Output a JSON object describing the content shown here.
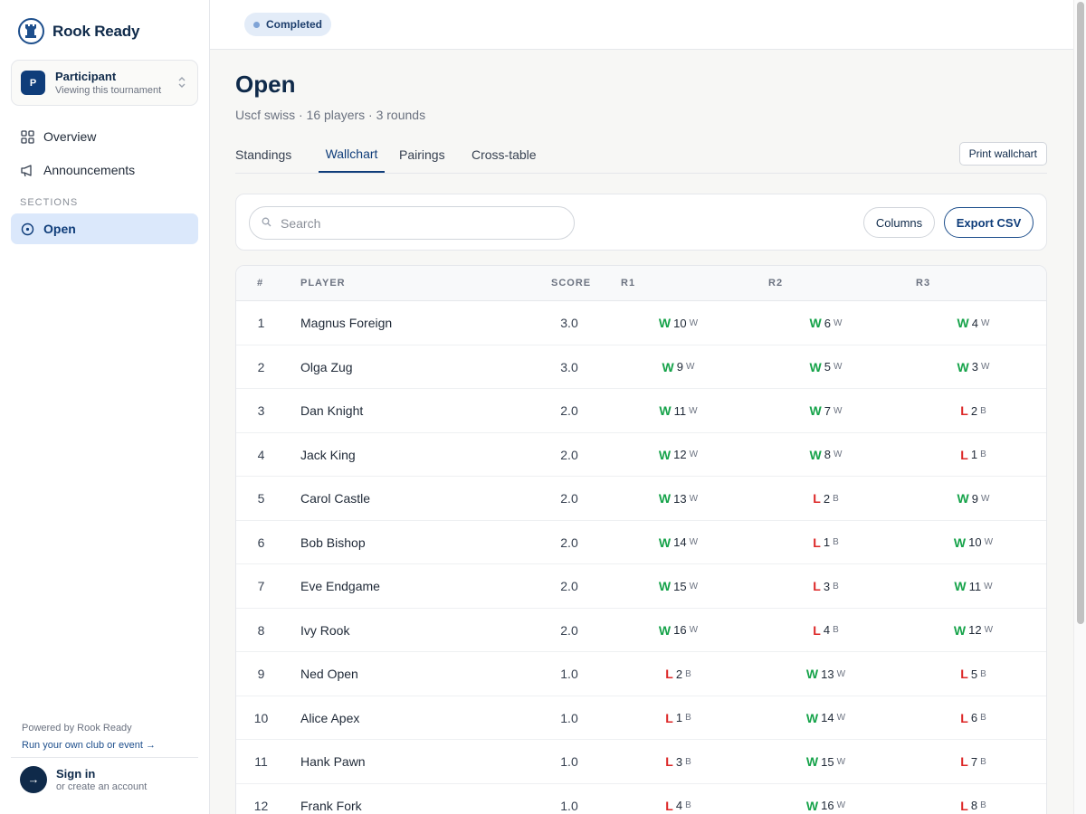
{
  "brand": {
    "name": "Rook Ready",
    "logo_icon": "rook-icon"
  },
  "role": {
    "avatar": "P",
    "title": "Participant",
    "subtitle": "Viewing this tournament"
  },
  "nav": {
    "overview": "Overview",
    "announcements": "Announcements",
    "sections_label": "SECTIONS",
    "open": "Open"
  },
  "footer": {
    "powered": "Powered by Rook Ready",
    "run_link": "Run your own club or event →",
    "signin_title": "Sign in",
    "signin_sub": "or create an account"
  },
  "status": {
    "label": "Completed"
  },
  "page": {
    "title": "Open",
    "subtitle": "Uscf swiss · 16 players · 3 rounds"
  },
  "tabs": {
    "standings": "Standings",
    "wallchart": "Wallchart",
    "pairings": "Pairings",
    "cross": "Cross-table",
    "active": "Wallchart"
  },
  "actions": {
    "print": "Print wallchart",
    "columns": "Columns",
    "export": "Export CSV"
  },
  "search": {
    "placeholder": "Search",
    "value": ""
  },
  "table": {
    "headers": {
      "num": "#",
      "player": "PLAYER",
      "score": "SCORE",
      "r1": "R1",
      "r2": "R2",
      "r3": "R3"
    },
    "rows": [
      {
        "num": "1",
        "player": "Magnus Foreign",
        "score": "3.0",
        "r": [
          [
            "W",
            "10",
            "W"
          ],
          [
            "W",
            "6",
            "W"
          ],
          [
            "W",
            "4",
            "W"
          ]
        ]
      },
      {
        "num": "2",
        "player": "Olga Zug",
        "score": "3.0",
        "r": [
          [
            "W",
            "9",
            "W"
          ],
          [
            "W",
            "5",
            "W"
          ],
          [
            "W",
            "3",
            "W"
          ]
        ]
      },
      {
        "num": "3",
        "player": "Dan Knight",
        "score": "2.0",
        "r": [
          [
            "W",
            "11",
            "W"
          ],
          [
            "W",
            "7",
            "W"
          ],
          [
            "L",
            "2",
            "B"
          ]
        ]
      },
      {
        "num": "4",
        "player": "Jack King",
        "score": "2.0",
        "r": [
          [
            "W",
            "12",
            "W"
          ],
          [
            "W",
            "8",
            "W"
          ],
          [
            "L",
            "1",
            "B"
          ]
        ]
      },
      {
        "num": "5",
        "player": "Carol Castle",
        "score": "2.0",
        "r": [
          [
            "W",
            "13",
            "W"
          ],
          [
            "L",
            "2",
            "B"
          ],
          [
            "W",
            "9",
            "W"
          ]
        ]
      },
      {
        "num": "6",
        "player": "Bob Bishop",
        "score": "2.0",
        "r": [
          [
            "W",
            "14",
            "W"
          ],
          [
            "L",
            "1",
            "B"
          ],
          [
            "W",
            "10",
            "W"
          ]
        ]
      },
      {
        "num": "7",
        "player": "Eve Endgame",
        "score": "2.0",
        "r": [
          [
            "W",
            "15",
            "W"
          ],
          [
            "L",
            "3",
            "B"
          ],
          [
            "W",
            "11",
            "W"
          ]
        ]
      },
      {
        "num": "8",
        "player": "Ivy Rook",
        "score": "2.0",
        "r": [
          [
            "W",
            "16",
            "W"
          ],
          [
            "L",
            "4",
            "B"
          ],
          [
            "W",
            "12",
            "W"
          ]
        ]
      },
      {
        "num": "9",
        "player": "Ned Open",
        "score": "1.0",
        "r": [
          [
            "L",
            "2",
            "B"
          ],
          [
            "W",
            "13",
            "W"
          ],
          [
            "L",
            "5",
            "B"
          ]
        ]
      },
      {
        "num": "10",
        "player": "Alice Apex",
        "score": "1.0",
        "r": [
          [
            "L",
            "1",
            "B"
          ],
          [
            "W",
            "14",
            "W"
          ],
          [
            "L",
            "6",
            "B"
          ]
        ]
      },
      {
        "num": "11",
        "player": "Hank Pawn",
        "score": "1.0",
        "r": [
          [
            "L",
            "3",
            "B"
          ],
          [
            "W",
            "15",
            "W"
          ],
          [
            "L",
            "7",
            "B"
          ]
        ]
      },
      {
        "num": "12",
        "player": "Frank Fork",
        "score": "1.0",
        "r": [
          [
            "L",
            "4",
            "B"
          ],
          [
            "W",
            "16",
            "W"
          ],
          [
            "L",
            "8",
            "B"
          ]
        ]
      }
    ]
  },
  "colors": {
    "accent": "#0f3d7a",
    "win": "#16a34a",
    "loss": "#dc2626",
    "active_nav_bg": "#dbe8fb"
  }
}
